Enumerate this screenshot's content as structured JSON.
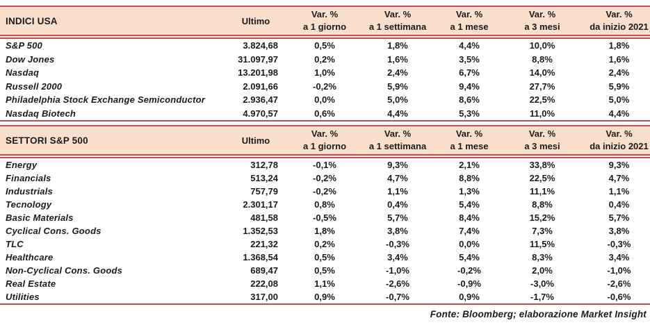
{
  "colors": {
    "accent_red": "#C0504D",
    "header_fill": "#FBDFCD",
    "text": "#1B1B1B"
  },
  "footer": {
    "source_note": "Fonte: Bloomberg; elaborazione Market Insight"
  },
  "tables": [
    {
      "title": "INDICI USA",
      "ultimo_label": "Ultimo",
      "var_headers": [
        {
          "line1": "Var. %",
          "line2": "a 1 giorno"
        },
        {
          "line1": "Var. %",
          "line2": "a 1 settimana"
        },
        {
          "line1": "Var. %",
          "line2": "a 1 mese"
        },
        {
          "line1": "Var. %",
          "line2": "a 3 mesi"
        },
        {
          "line1": "Var. %",
          "line2": "da inizio 2021"
        }
      ],
      "rows": [
        {
          "name": "S&P 500",
          "ultimo": "3.824,68",
          "vars": [
            "0,5%",
            "1,8%",
            "4,4%",
            "10,0%",
            "1,8%"
          ]
        },
        {
          "name": "Dow Jones",
          "ultimo": "31.097,97",
          "vars": [
            "0,2%",
            "1,6%",
            "3,5%",
            "8,8%",
            "1,6%"
          ]
        },
        {
          "name": "Nasdaq",
          "ultimo": "13.201,98",
          "vars": [
            "1,0%",
            "2,4%",
            "6,7%",
            "14,0%",
            "2,4%"
          ]
        },
        {
          "name": "Russell 2000",
          "ultimo": "2.091,66",
          "vars": [
            "-0,2%",
            "5,9%",
            "9,4%",
            "27,7%",
            "5,9%"
          ]
        },
        {
          "name": "Philadelphia Stock Exchange Semiconductor",
          "ultimo": "2.936,47",
          "vars": [
            "0,0%",
            "5,0%",
            "8,6%",
            "22,5%",
            "5,0%"
          ]
        },
        {
          "name": "Nasdaq Biotech",
          "ultimo": "4.970,57",
          "vars": [
            "0,6%",
            "4,4%",
            "5,3%",
            "11,0%",
            "4,4%"
          ]
        }
      ]
    },
    {
      "title": "SETTORI S&P 500",
      "ultimo_label": "Ultimo",
      "var_headers": [
        {
          "line1": "Var. %",
          "line2": "a 1 giorno"
        },
        {
          "line1": "Var. %",
          "line2": "a 1 settimana"
        },
        {
          "line1": "Var. %",
          "line2": "a 1 mese"
        },
        {
          "line1": "Var. %",
          "line2": "a 3 mesi"
        },
        {
          "line1": "Var. %",
          "line2": "da inizio 2021"
        }
      ],
      "rows": [
        {
          "name": "Energy",
          "ultimo": "312,78",
          "vars": [
            "-0,1%",
            "9,3%",
            "2,1%",
            "33,8%",
            "9,3%"
          ]
        },
        {
          "name": "Financials",
          "ultimo": "513,24",
          "vars": [
            "-0,2%",
            "4,7%",
            "8,8%",
            "22,5%",
            "4,7%"
          ]
        },
        {
          "name": "Industrials",
          "ultimo": "757,79",
          "vars": [
            "-0,2%",
            "1,1%",
            "1,3%",
            "11,1%",
            "1,1%"
          ]
        },
        {
          "name": "Tecnology",
          "ultimo": "2.301,17",
          "vars": [
            "0,8%",
            "0,4%",
            "5,4%",
            "8,8%",
            "0,4%"
          ]
        },
        {
          "name": "Basic Materials",
          "ultimo": "481,58",
          "vars": [
            "-0,5%",
            "5,7%",
            "8,4%",
            "15,2%",
            "5,7%"
          ]
        },
        {
          "name": "Cyclical Cons. Goods",
          "ultimo": "1.352,53",
          "vars": [
            "1,8%",
            "3,8%",
            "7,4%",
            "7,3%",
            "3,8%"
          ]
        },
        {
          "name": "TLC",
          "ultimo": "221,32",
          "vars": [
            "0,2%",
            "-0,3%",
            "0,0%",
            "11,5%",
            "-0,3%"
          ]
        },
        {
          "name": "Healthcare",
          "ultimo": "1.368,54",
          "vars": [
            "0,5%",
            "3,4%",
            "5,4%",
            "8,3%",
            "3,4%"
          ]
        },
        {
          "name": "Non-Cyclical Cons. Goods",
          "ultimo": "689,47",
          "vars": [
            "0,5%",
            "-1,0%",
            "-0,2%",
            "2,0%",
            "-1,0%"
          ]
        },
        {
          "name": "Real Estate",
          "ultimo": "222,08",
          "vars": [
            "1,1%",
            "-2,6%",
            "-0,9%",
            "-3,0%",
            "-2,6%"
          ]
        },
        {
          "name": "Utilities",
          "ultimo": "317,00",
          "vars": [
            "0,9%",
            "-0,7%",
            "0,9%",
            "-1,7%",
            "-0,6%"
          ]
        }
      ]
    }
  ]
}
